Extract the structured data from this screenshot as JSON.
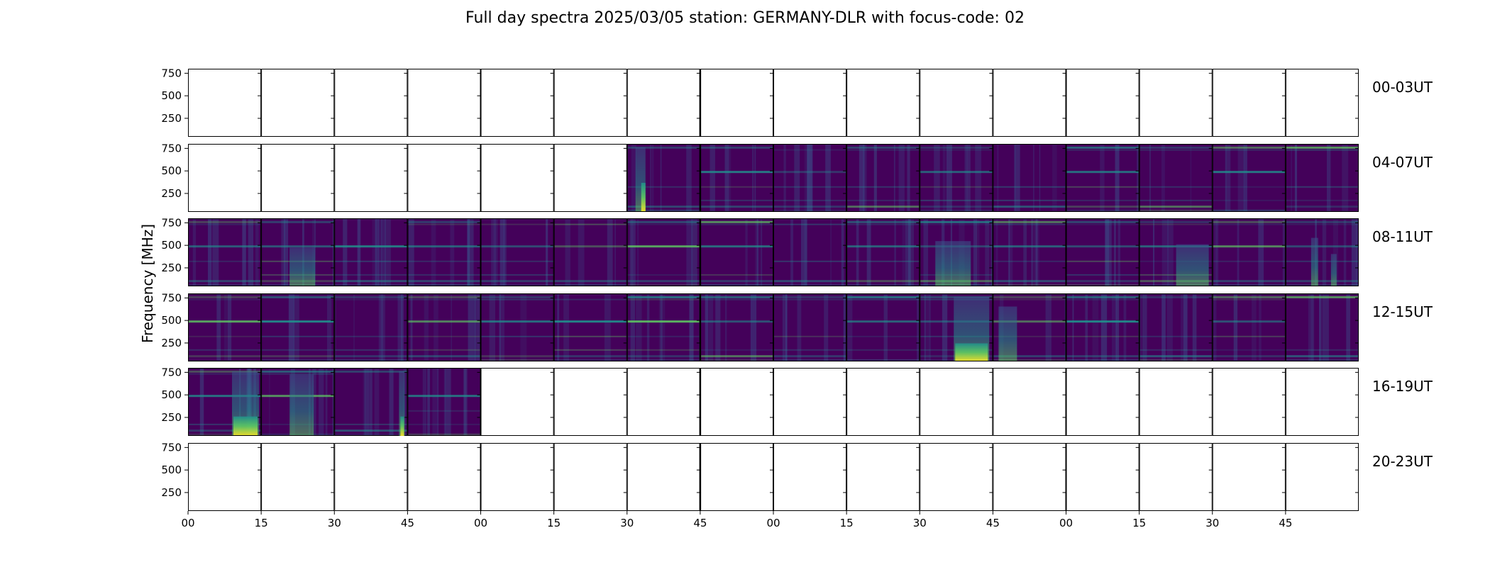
{
  "title": "Full day spectra 2025/03/05 station: GERMANY-DLR with focus-code: 02",
  "chart_data": {
    "type": "heatmap",
    "title": "Full day spectra 2025/03/05 station: GERMANY-DLR with focus-code: 02",
    "ylabel": "Frequency [MHz]",
    "xlabel": "",
    "yticks": [
      250,
      500,
      750
    ],
    "ylim": [
      45,
      800
    ],
    "xticks": [
      "00",
      "15",
      "30",
      "45",
      "00",
      "15",
      "30",
      "45",
      "00",
      "15",
      "30",
      "45",
      "00",
      "15",
      "30",
      "45"
    ],
    "colormap": "viridis",
    "colors": {
      "background": "#44015a",
      "bright": "#fde725",
      "teal": "#21918c",
      "green": "#5ec962"
    },
    "rows": [
      {
        "label": "00-03UT",
        "start_hour": 0,
        "panels_with_data": []
      },
      {
        "label": "04-07UT",
        "start_hour": 4,
        "panels_with_data": [
          6,
          7,
          8,
          9,
          10,
          11,
          12,
          13,
          14,
          15
        ]
      },
      {
        "label": "08-11UT",
        "start_hour": 8,
        "panels_with_data": [
          0,
          1,
          2,
          3,
          4,
          5,
          6,
          7,
          8,
          9,
          10,
          11,
          12,
          13,
          14,
          15
        ]
      },
      {
        "label": "12-15UT",
        "start_hour": 12,
        "panels_with_data": [
          0,
          1,
          2,
          3,
          4,
          5,
          6,
          7,
          8,
          9,
          10,
          11,
          12,
          13,
          14,
          15
        ]
      },
      {
        "label": "16-19UT",
        "start_hour": 16,
        "panels_with_data": [
          0,
          1,
          2,
          3
        ]
      },
      {
        "label": "20-23UT",
        "start_hour": 20,
        "panels_with_data": []
      }
    ]
  }
}
